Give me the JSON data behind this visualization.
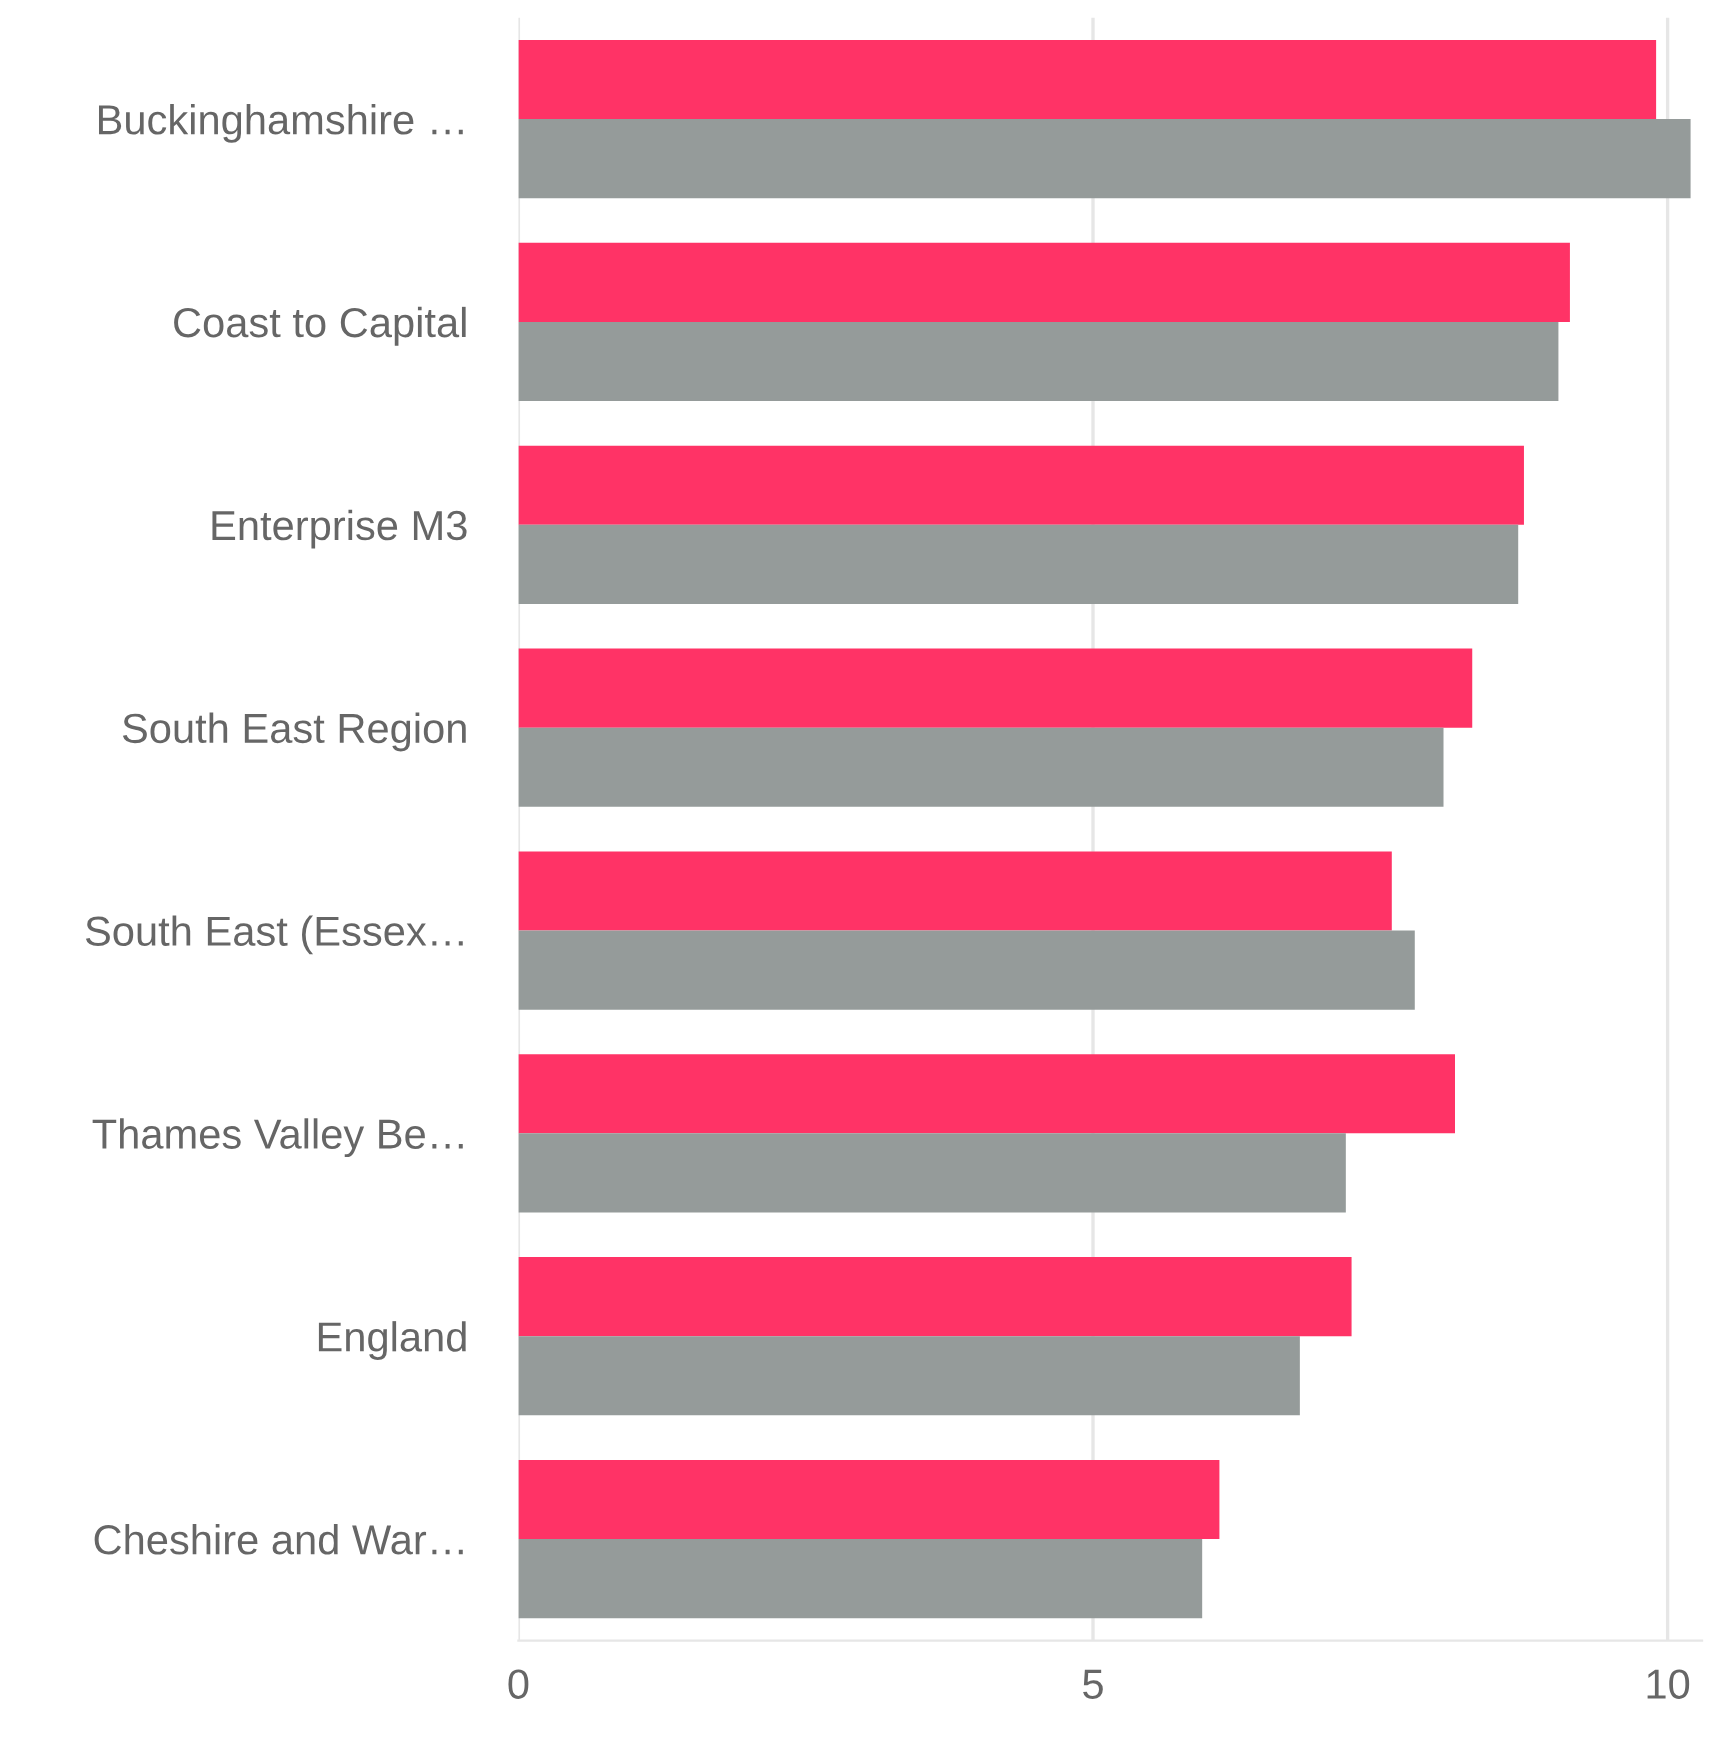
{
  "chart_data": {
    "type": "bar",
    "orientation": "horizontal",
    "categories": [
      "Buckinghamshire …",
      "Coast to Capital",
      "Enterprise M3",
      "South East Region",
      "South East (Essex…",
      "Thames Valley Be…",
      "England",
      "Cheshire and War…"
    ],
    "series": [
      {
        "color": "#ff3366",
        "values": [
          9.9,
          9.15,
          8.75,
          8.3,
          7.6,
          8.15,
          7.25,
          6.1
        ]
      },
      {
        "color": "#959b9a",
        "values": [
          10.2,
          9.05,
          8.7,
          8.05,
          7.8,
          7.2,
          6.8,
          5.95
        ]
      }
    ],
    "xlim": [
      0,
      10.3
    ],
    "xticks": [
      0,
      5,
      10
    ],
    "grid": "x",
    "legend": false
  }
}
